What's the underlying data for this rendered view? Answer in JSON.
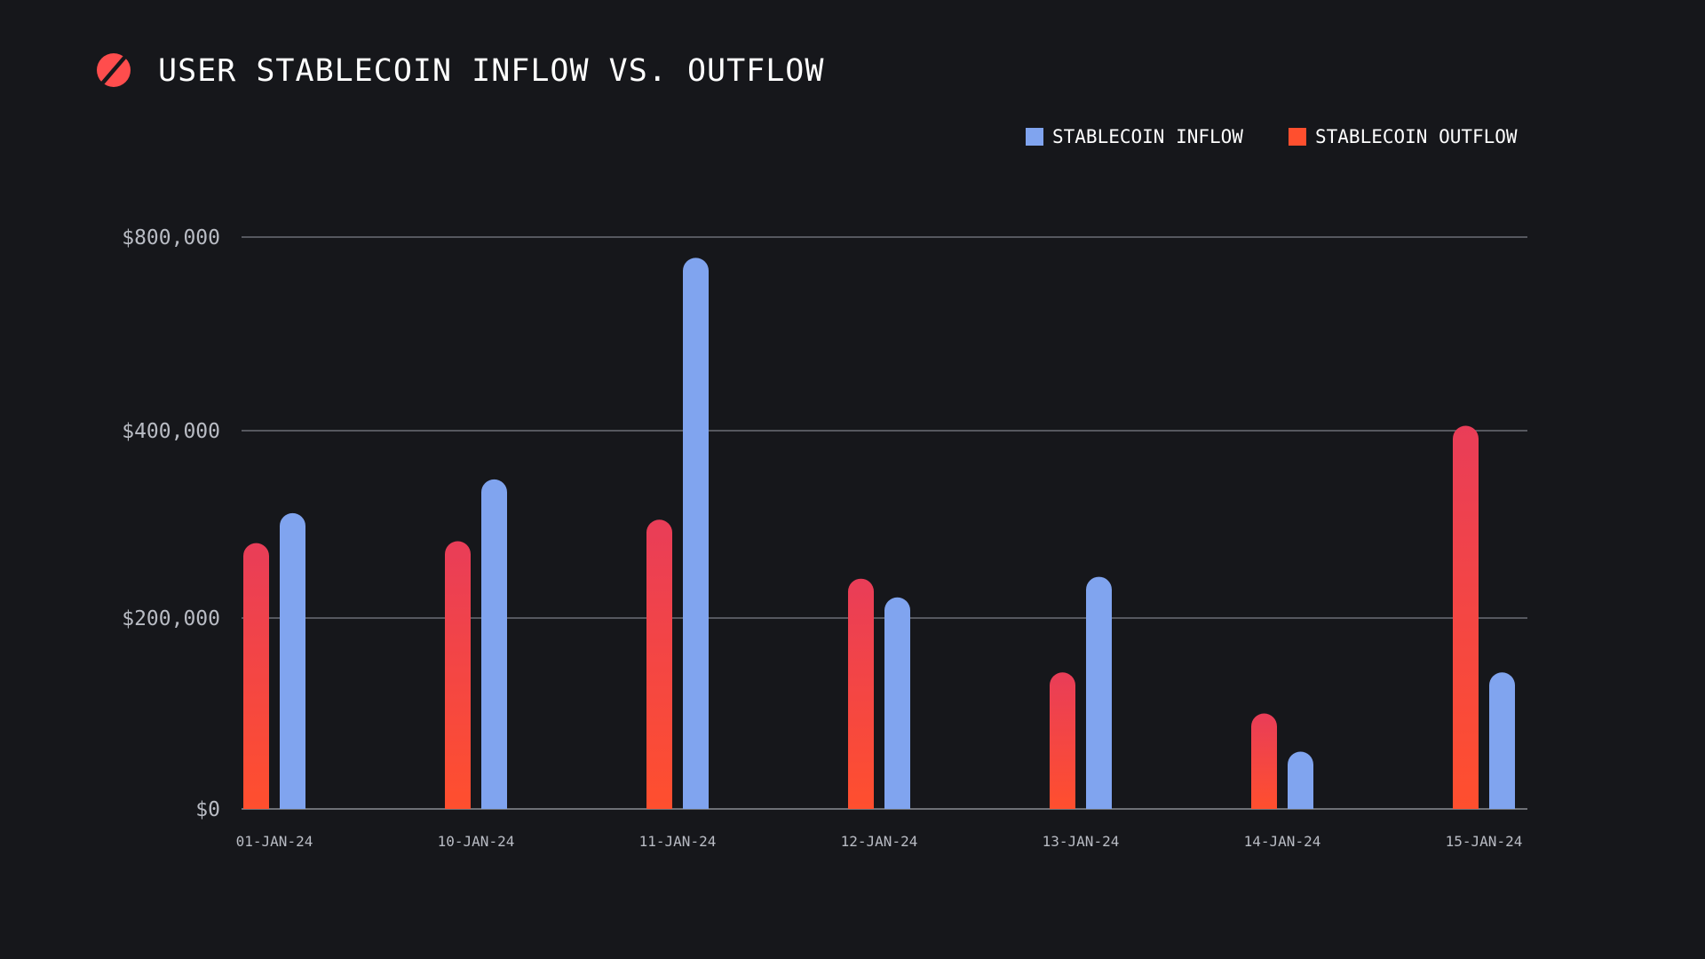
{
  "colors": {
    "background": "#16171b",
    "inflow": "#80a4ef",
    "outflow_top": "#e93d58",
    "outflow_bottom": "#ff4f2e",
    "logo_bg": "#ff4d4d",
    "logo_slash": "#16171b"
  },
  "icons": {
    "logo": "circle-slash-logo",
    "inflow_swatch": "blue-square",
    "outflow_swatch": "red-square"
  },
  "chart_data": {
    "type": "bar",
    "title": "USER STABLECOIN INFLOW VS. OUTFLOW",
    "xlabel": "",
    "ylabel": "",
    "ylim": [
      0,
      960000
    ],
    "yticks": [
      0,
      200000,
      400000,
      800000
    ],
    "ytick_labels": [
      "$0",
      "$200,000",
      "$400,000",
      "$800,000"
    ],
    "grid": true,
    "legend_position": "top-right",
    "categories": [
      "01-JAN-24",
      "10-JAN-24",
      "11-JAN-24",
      "12-JAN-24",
      "13-JAN-24",
      "14-JAN-24",
      "15-JAN-24"
    ],
    "series": [
      {
        "name": "STABLECOIN OUTFLOW",
        "key": "outflow",
        "values": [
          280000,
          282000,
          305000,
          242000,
          143000,
          100000,
          410000
        ]
      },
      {
        "name": "STABLECOIN INFLOW",
        "key": "inflow",
        "values": [
          312000,
          348000,
          757000,
          222000,
          244000,
          60000,
          143000
        ]
      }
    ],
    "legend": [
      {
        "label": "STABLECOIN INFLOW",
        "key": "inflow"
      },
      {
        "label": "STABLECOIN OUTFLOW",
        "key": "outflow"
      }
    ]
  }
}
